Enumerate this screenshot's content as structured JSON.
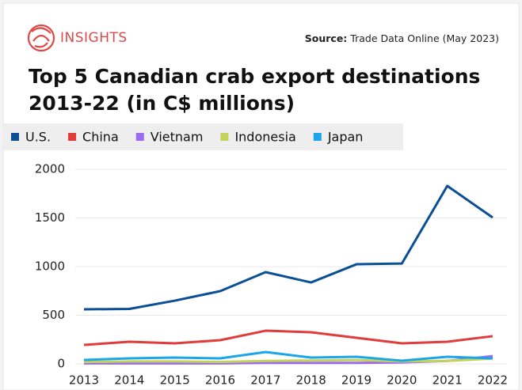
{
  "header": {
    "brand": "INSIGHTS",
    "source_label": "Source:",
    "source": "Trade Data Online (May 2023)"
  },
  "chart_data": {
    "type": "line",
    "title": "Top 5 Canadian crab export destinations",
    "subtitle": "2013-22 (in C$ millions)",
    "categories": [
      "2013",
      "2014",
      "2015",
      "2016",
      "2017",
      "2018",
      "2019",
      "2020",
      "2021",
      "2022"
    ],
    "series": [
      {
        "name": "U.S.",
        "color": "#0b4f96",
        "values": [
          561,
          565,
          650,
          748,
          943,
          837,
          1024,
          1032,
          1829,
          1504
        ]
      },
      {
        "name": "China",
        "color": "#e03c3c",
        "values": [
          195,
          228,
          211,
          244,
          341,
          325,
          268,
          211,
          228,
          285
        ]
      },
      {
        "name": "Vietnam",
        "color": "#9b6cf0",
        "values": [
          5,
          5,
          5,
          5,
          10,
          10,
          10,
          15,
          30,
          80
        ]
      },
      {
        "name": "Indonesia",
        "color": "#c3d35a",
        "values": [
          20,
          25,
          25,
          20,
          30,
          35,
          40,
          25,
          30,
          55
        ]
      },
      {
        "name": "Japan",
        "color": "#1aa6e8",
        "values": [
          41,
          57,
          65,
          57,
          122,
          65,
          73,
          33,
          73,
          57
        ]
      }
    ],
    "ylim": [
      0,
      2000
    ],
    "yticks": [
      0,
      500,
      1000,
      1500,
      2000
    ],
    "grid": true
  }
}
